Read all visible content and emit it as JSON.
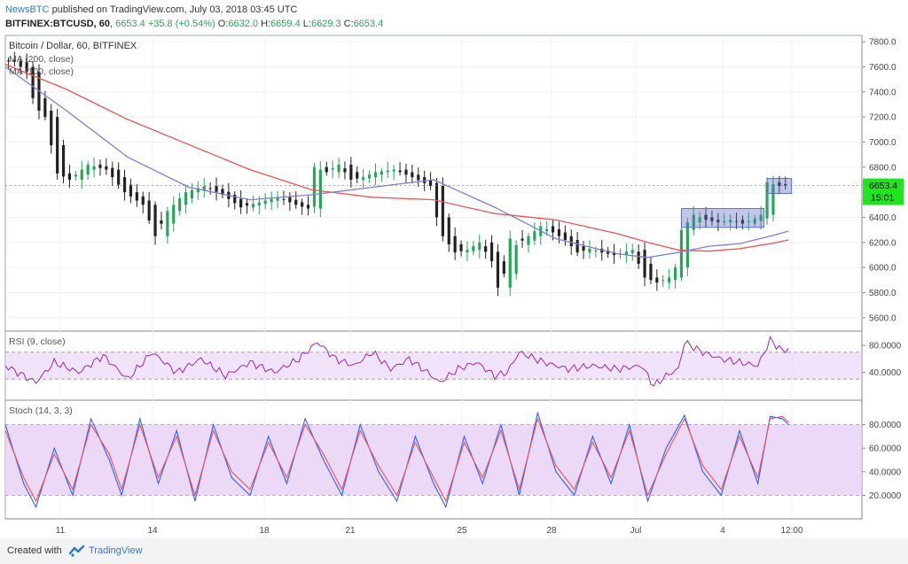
{
  "header": {
    "publisher": "NewsBTC",
    "published_text": "published on TradingView.com, July 03, 2018 03:45 UTC",
    "symbol": "BITFINEX:BTCUSD, 60",
    "last": "6653.4",
    "change": "+35.8 (+0.54%)",
    "o_label": "O:",
    "o_value": "6632.0",
    "h_label": "H:",
    "h_value": "6659.4",
    "l_label": "L:",
    "l_value": "6629.3",
    "c_label": "C:",
    "c_value": "6653.4"
  },
  "footer": {
    "created_with": "Created with",
    "brand": "TradingView"
  },
  "colors": {
    "up": "#26a65b",
    "down": "#222222",
    "ma200": "#ef5350",
    "ma100": "#7e7ed8",
    "rsi": "#9c27b0",
    "stoch_k": "#2962ff",
    "stoch_d": "#ef5350",
    "band": "#e6ccf5",
    "box": "#5b6fc0",
    "price_tag": "#1ee51e"
  },
  "chart_data": {
    "type": "candlestick",
    "title": "Bitcoin / Dollar, 60, BITFINEX",
    "price_axis": {
      "ylim": [
        5500,
        7850
      ],
      "ticks": [
        "7800.0",
        "7600.0",
        "7400.0",
        "7200.0",
        "7000.0",
        "6800.0",
        "6600.0",
        "6400.0",
        "6200.0",
        "6000.0",
        "5800.0",
        "5600.0"
      ]
    },
    "x_labels": [
      "11",
      "14",
      "18",
      "21",
      "25",
      "28",
      "Jul",
      "4",
      "12:00"
    ],
    "last_price": "6653.4",
    "countdown": "15:01",
    "legend": [
      "MA (200, close)",
      "MA (100, close)"
    ],
    "close_path": [
      [
        0,
        7650
      ],
      [
        2,
        7640
      ],
      [
        4,
        7560
      ],
      [
        5,
        7350
      ],
      [
        6,
        7250
      ],
      [
        7,
        7200
      ],
      [
        9,
        6750
      ],
      [
        11,
        6700
      ],
      [
        14,
        6820
      ],
      [
        17,
        6780
      ],
      [
        20,
        6600
      ],
      [
        23,
        6500
      ],
      [
        25,
        6250
      ],
      [
        27,
        6450
      ],
      [
        30,
        6600
      ],
      [
        33,
        6650
      ],
      [
        36,
        6580
      ],
      [
        39,
        6480
      ],
      [
        42,
        6520
      ],
      [
        45,
        6560
      ],
      [
        48,
        6500
      ],
      [
        50,
        6470
      ],
      [
        51,
        6800
      ],
      [
        53,
        6760
      ],
      [
        55,
        6820
      ],
      [
        57,
        6700
      ],
      [
        59,
        6720
      ],
      [
        61,
        6760
      ],
      [
        64,
        6780
      ],
      [
        67,
        6720
      ],
      [
        70,
        6650
      ],
      [
        71,
        6400
      ],
      [
        72,
        6250
      ],
      [
        74,
        6120
      ],
      [
        76,
        6140
      ],
      [
        78,
        6200
      ],
      [
        80,
        6050
      ],
      [
        81,
        5840
      ],
      [
        82,
        5950
      ],
      [
        83,
        6230
      ],
      [
        84,
        6180
      ],
      [
        86,
        6250
      ],
      [
        88,
        6330
      ],
      [
        90,
        6280
      ],
      [
        92,
        6220
      ],
      [
        94,
        6120
      ],
      [
        96,
        6150
      ],
      [
        98,
        6120
      ],
      [
        100,
        6100
      ],
      [
        103,
        6140
      ],
      [
        105,
        5920
      ],
      [
        107,
        5880
      ],
      [
        109,
        5920
      ],
      [
        110,
        6000
      ],
      [
        111,
        6300
      ],
      [
        113,
        6420
      ],
      [
        115,
        6380
      ],
      [
        117,
        6360
      ],
      [
        119,
        6380
      ],
      [
        121,
        6350
      ],
      [
        123,
        6390
      ],
      [
        124,
        6420
      ],
      [
        125,
        6680
      ],
      [
        127,
        6650
      ],
      [
        128,
        6653
      ]
    ],
    "ma200": [
      [
        0,
        7620
      ],
      [
        10,
        7420
      ],
      [
        20,
        7180
      ],
      [
        30,
        6980
      ],
      [
        40,
        6780
      ],
      [
        50,
        6620
      ],
      [
        60,
        6560
      ],
      [
        70,
        6540
      ],
      [
        80,
        6430
      ],
      [
        90,
        6380
      ],
      [
        100,
        6270
      ],
      [
        105,
        6200
      ],
      [
        110,
        6140
      ],
      [
        115,
        6130
      ],
      [
        120,
        6150
      ],
      [
        125,
        6190
      ],
      [
        128,
        6220
      ]
    ],
    "ma100": [
      [
        0,
        7600
      ],
      [
        10,
        7250
      ],
      [
        20,
        6880
      ],
      [
        30,
        6640
      ],
      [
        40,
        6540
      ],
      [
        50,
        6580
      ],
      [
        60,
        6640
      ],
      [
        70,
        6700
      ],
      [
        80,
        6480
      ],
      [
        90,
        6230
      ],
      [
        100,
        6110
      ],
      [
        105,
        6080
      ],
      [
        110,
        6120
      ],
      [
        115,
        6170
      ],
      [
        120,
        6190
      ],
      [
        125,
        6250
      ],
      [
        128,
        6290
      ]
    ],
    "boxes": [
      {
        "label": "range",
        "x": [
          110.5,
          124
        ],
        "y": [
          6320,
          6470
        ]
      },
      {
        "label": "range-2",
        "x": [
          124.5,
          128.5
        ],
        "y": [
          6590,
          6710
        ]
      }
    ],
    "rsi": {
      "label": "RSI (9, close)",
      "ylim": [
        0,
        100
      ],
      "ticks": [
        "80.0000",
        "40.0000"
      ],
      "band": [
        30,
        70
      ],
      "path": [
        [
          0,
          50
        ],
        [
          3,
          35
        ],
        [
          5,
          25
        ],
        [
          8,
          55
        ],
        [
          12,
          40
        ],
        [
          16,
          65
        ],
        [
          20,
          30
        ],
        [
          24,
          70
        ],
        [
          28,
          40
        ],
        [
          32,
          60
        ],
        [
          36,
          35
        ],
        [
          40,
          55
        ],
        [
          44,
          40
        ],
        [
          48,
          60
        ],
        [
          51,
          85
        ],
        [
          54,
          60
        ],
        [
          57,
          50
        ],
        [
          60,
          70
        ],
        [
          63,
          45
        ],
        [
          66,
          60
        ],
        [
          69,
          40
        ],
        [
          71,
          25
        ],
        [
          74,
          45
        ],
        [
          77,
          55
        ],
        [
          80,
          35
        ],
        [
          82,
          40
        ],
        [
          84,
          70
        ],
        [
          88,
          55
        ],
        [
          92,
          45
        ],
        [
          96,
          50
        ],
        [
          100,
          45
        ],
        [
          104,
          50
        ],
        [
          106,
          20
        ],
        [
          108,
          35
        ],
        [
          110,
          45
        ],
        [
          111,
          85
        ],
        [
          114,
          70
        ],
        [
          117,
          60
        ],
        [
          120,
          55
        ],
        [
          123,
          50
        ],
        [
          125,
          88
        ],
        [
          127,
          72
        ],
        [
          128,
          75
        ]
      ]
    },
    "stoch": {
      "label": "Stoch (14, 3, 3)",
      "ylim": [
        0,
        100
      ],
      "ticks": [
        "80.0000",
        "60.0000",
        "40.0000",
        "20.0000"
      ],
      "band": [
        20,
        80
      ],
      "k": [
        [
          0,
          80
        ],
        [
          3,
          30
        ],
        [
          5,
          10
        ],
        [
          8,
          60
        ],
        [
          11,
          20
        ],
        [
          14,
          85
        ],
        [
          17,
          50
        ],
        [
          19,
          20
        ],
        [
          22,
          85
        ],
        [
          25,
          30
        ],
        [
          28,
          75
        ],
        [
          31,
          15
        ],
        [
          34,
          80
        ],
        [
          37,
          35
        ],
        [
          40,
          20
        ],
        [
          43,
          70
        ],
        [
          46,
          30
        ],
        [
          49,
          85
        ],
        [
          52,
          50
        ],
        [
          55,
          20
        ],
        [
          58,
          80
        ],
        [
          61,
          40
        ],
        [
          64,
          15
        ],
        [
          67,
          70
        ],
        [
          70,
          30
        ],
        [
          72,
          10
        ],
        [
          75,
          70
        ],
        [
          78,
          30
        ],
        [
          81,
          80
        ],
        [
          84,
          20
        ],
        [
          87,
          90
        ],
        [
          90,
          40
        ],
        [
          93,
          20
        ],
        [
          96,
          70
        ],
        [
          99,
          30
        ],
        [
          102,
          80
        ],
        [
          105,
          15
        ],
        [
          108,
          60
        ],
        [
          111,
          88
        ],
        [
          114,
          40
        ],
        [
          117,
          20
        ],
        [
          120,
          75
        ],
        [
          123,
          30
        ],
        [
          125,
          87
        ],
        [
          127,
          85
        ],
        [
          128,
          80
        ]
      ],
      "d": [
        [
          0,
          75
        ],
        [
          3,
          35
        ],
        [
          5,
          15
        ],
        [
          8,
          55
        ],
        [
          11,
          25
        ],
        [
          14,
          80
        ],
        [
          17,
          55
        ],
        [
          19,
          25
        ],
        [
          22,
          80
        ],
        [
          25,
          35
        ],
        [
          28,
          70
        ],
        [
          31,
          20
        ],
        [
          34,
          75
        ],
        [
          37,
          40
        ],
        [
          40,
          25
        ],
        [
          43,
          65
        ],
        [
          46,
          35
        ],
        [
          49,
          80
        ],
        [
          52,
          55
        ],
        [
          55,
          25
        ],
        [
          58,
          75
        ],
        [
          61,
          45
        ],
        [
          64,
          20
        ],
        [
          67,
          65
        ],
        [
          70,
          35
        ],
        [
          72,
          15
        ],
        [
          75,
          65
        ],
        [
          78,
          35
        ],
        [
          81,
          75
        ],
        [
          84,
          25
        ],
        [
          87,
          85
        ],
        [
          90,
          45
        ],
        [
          93,
          25
        ],
        [
          96,
          65
        ],
        [
          99,
          35
        ],
        [
          102,
          75
        ],
        [
          105,
          20
        ],
        [
          108,
          55
        ],
        [
          111,
          85
        ],
        [
          114,
          45
        ],
        [
          117,
          25
        ],
        [
          120,
          70
        ],
        [
          123,
          35
        ],
        [
          125,
          85
        ],
        [
          127,
          87
        ],
        [
          128,
          82
        ]
      ]
    }
  }
}
